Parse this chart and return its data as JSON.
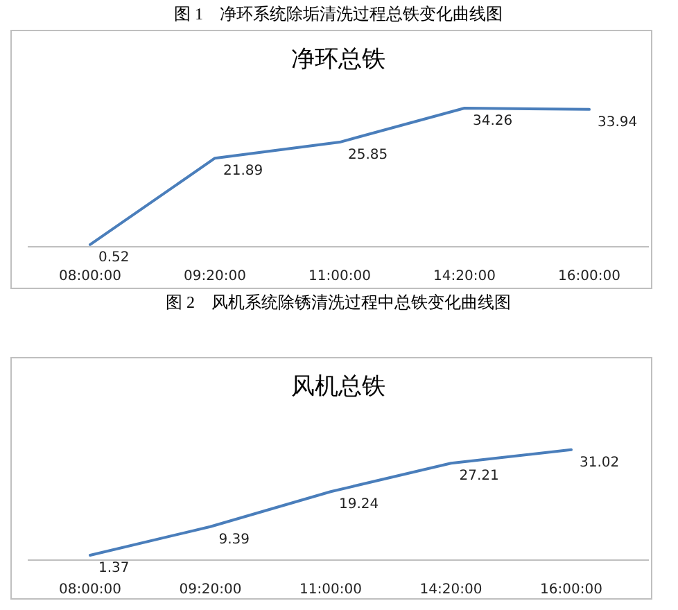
{
  "chart_data": [
    {
      "type": "line",
      "title": "净环总铁",
      "annotations": [
        "图 1　净环系统除垢清洗过程总铁变化曲线图"
      ],
      "categories": [
        "08:00:00",
        "09:20:00",
        "11:00:00",
        "14:20:00",
        "16:00:00"
      ],
      "values": [
        0.52,
        21.89,
        25.85,
        34.26,
        33.94
      ],
      "color": "#4a7ebb",
      "data_labels": true
    },
    {
      "type": "line",
      "title": "风机总铁",
      "annotations": [
        "图 2　风机系统除锈清洗过程中总铁变化曲线图"
      ],
      "categories": [
        "08:00:00",
        "09:20:00",
        "11:00:00",
        "14:20:00",
        "16:00:00"
      ],
      "values": [
        1.37,
        9.39,
        19.24,
        27.21,
        31.02
      ],
      "color": "#4a7ebb",
      "data_labels": true
    }
  ]
}
